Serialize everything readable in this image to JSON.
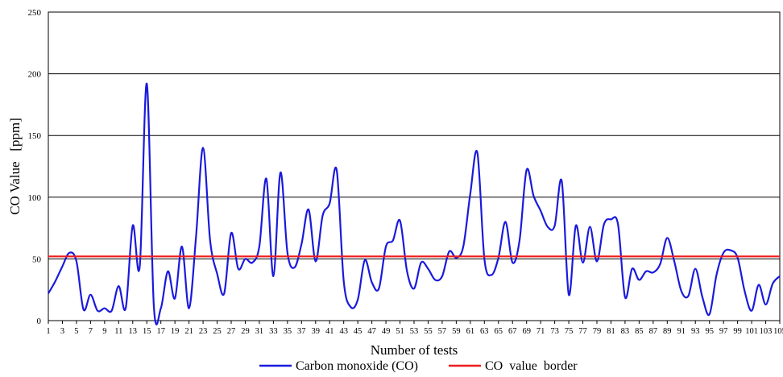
{
  "chart_data": {
    "type": "line",
    "title": "",
    "xlabel": "Number of tests",
    "ylabel": "CO Value   [ppm]",
    "ylim": [
      0,
      250
    ],
    "yticks": [
      0,
      50,
      100,
      150,
      200,
      250
    ],
    "xlim": [
      1,
      105
    ],
    "xticks": [
      1,
      3,
      5,
      7,
      9,
      11,
      13,
      15,
      17,
      19,
      21,
      23,
      25,
      27,
      29,
      31,
      33,
      35,
      37,
      39,
      41,
      43,
      45,
      47,
      49,
      51,
      53,
      55,
      57,
      59,
      61,
      63,
      65,
      67,
      69,
      71,
      73,
      75,
      77,
      79,
      81,
      83,
      85,
      87,
      89,
      91,
      93,
      95,
      97,
      99,
      101,
      103,
      105
    ],
    "grid": "horizontal",
    "legend_position": "bottom",
    "series": [
      {
        "name": "Carbon monoxide (CO)",
        "color": "#1a1adc",
        "x": [
          1,
          2,
          3,
          4,
          5,
          6,
          7,
          8,
          9,
          10,
          11,
          12,
          13,
          14,
          15,
          16,
          17,
          18,
          19,
          20,
          21,
          22,
          23,
          24,
          25,
          26,
          27,
          28,
          29,
          30,
          31,
          32,
          33,
          34,
          35,
          36,
          37,
          38,
          39,
          40,
          41,
          42,
          43,
          44,
          45,
          46,
          47,
          48,
          49,
          50,
          51,
          52,
          53,
          54,
          55,
          56,
          57,
          58,
          59,
          60,
          61,
          62,
          63,
          64,
          65,
          66,
          67,
          68,
          69,
          70,
          71,
          72,
          73,
          74,
          75,
          76,
          77,
          78,
          79,
          80,
          81,
          82,
          83,
          84,
          85,
          86,
          87,
          88,
          89,
          90,
          91,
          92,
          93,
          94,
          95,
          96,
          97,
          98,
          99,
          100,
          101,
          102,
          103,
          104,
          105
        ],
        "values": [
          22,
          32,
          44,
          55,
          48,
          9,
          21,
          8,
          10,
          8,
          28,
          10,
          77,
          44,
          192,
          12,
          10,
          40,
          18,
          60,
          10,
          68,
          140,
          65,
          38,
          22,
          71,
          42,
          50,
          47,
          60,
          115,
          36,
          120,
          55,
          43,
          62,
          90,
          48,
          85,
          95,
          122,
          32,
          11,
          17,
          49,
          31,
          26,
          60,
          65,
          81,
          40,
          26,
          47,
          42,
          33,
          36,
          56,
          51,
          60,
          103,
          136,
          50,
          37,
          51,
          80,
          47,
          65,
          122,
          101,
          89,
          76,
          77,
          113,
          21,
          77,
          47,
          76,
          48,
          78,
          82,
          78,
          19,
          42,
          33,
          40,
          39,
          46,
          67,
          48,
          24,
          20,
          42,
          19,
          5,
          37,
          55,
          57,
          51,
          24,
          8,
          29,
          13,
          30,
          36
        ]
      },
      {
        "name": "CO  value  border",
        "color": "#ee1c1c",
        "x": [
          1,
          105
        ],
        "values": [
          52,
          52
        ]
      }
    ]
  }
}
